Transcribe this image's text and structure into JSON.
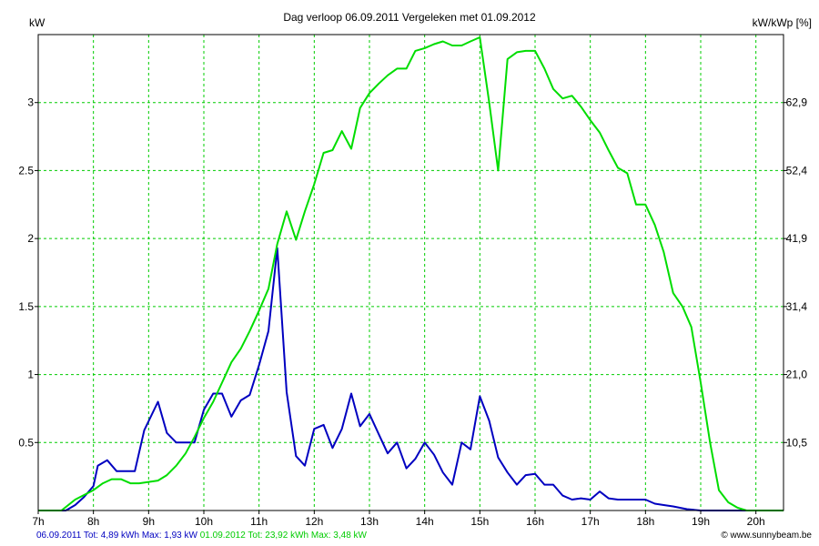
{
  "title": "Dag  verloop 06.09.2011   Vergeleken met 01.09.2012",
  "left_axis_label": "kW",
  "right_axis_label": "kW/kWp [%]",
  "footer": {
    "series1_text": "06.09.2011 Tot: 4,89 kWh Max: 1,93 kW",
    "series2_text": "01.09.2012 Tot: 23,92 kWh Max: 3,48 kW",
    "credit": "© www.sunnybeam.be"
  },
  "colors": {
    "series1": "#0000c0",
    "series2": "#00dd00",
    "grid": "#00cc00",
    "axis": "#000000"
  },
  "chart_data": {
    "type": "line",
    "title": "Dag  verloop 06.09.2011   Vergeleken met 01.09.2012",
    "ylabel": "kW",
    "y2label": "kW/kWp [%]",
    "xlim": [
      7,
      20.5
    ],
    "ylim": [
      0,
      3.5
    ],
    "grid": true,
    "x_ticks": [
      {
        "value": 7,
        "label": "7h"
      },
      {
        "value": 8,
        "label": "8h"
      },
      {
        "value": 9,
        "label": "9h"
      },
      {
        "value": 10,
        "label": "10h"
      },
      {
        "value": 11,
        "label": "11h"
      },
      {
        "value": 12,
        "label": "12h"
      },
      {
        "value": 13,
        "label": "13h"
      },
      {
        "value": 14,
        "label": "14h"
      },
      {
        "value": 15,
        "label": "15h"
      },
      {
        "value": 16,
        "label": "16h"
      },
      {
        "value": 17,
        "label": "17h"
      },
      {
        "value": 18,
        "label": "18h"
      },
      {
        "value": 19,
        "label": "19h"
      },
      {
        "value": 20,
        "label": "20h"
      }
    ],
    "y_ticks": [
      {
        "value": 0.5,
        "label": "0.5"
      },
      {
        "value": 1,
        "label": "1"
      },
      {
        "value": 1.5,
        "label": "1.5"
      },
      {
        "value": 2,
        "label": "2"
      },
      {
        "value": 2.5,
        "label": "2.5"
      },
      {
        "value": 3,
        "label": "3"
      }
    ],
    "y2_ticks": [
      {
        "value": 0.5,
        "label": "10,5"
      },
      {
        "value": 1,
        "label": "21,0"
      },
      {
        "value": 1.5,
        "label": "31,4"
      },
      {
        "value": 2,
        "label": "41,9"
      },
      {
        "value": 2.5,
        "label": "52,4"
      },
      {
        "value": 3,
        "label": "62,9"
      }
    ],
    "series": [
      {
        "name": "06.09.2011",
        "color": "#0000c0",
        "points": [
          [
            7.0,
            0
          ],
          [
            7.5,
            0
          ],
          [
            7.67,
            0.04
          ],
          [
            7.83,
            0.1
          ],
          [
            8.0,
            0.18
          ],
          [
            8.08,
            0.33
          ],
          [
            8.25,
            0.37
          ],
          [
            8.42,
            0.29
          ],
          [
            8.75,
            0.29
          ],
          [
            8.92,
            0.59
          ],
          [
            9.17,
            0.8
          ],
          [
            9.33,
            0.57
          ],
          [
            9.5,
            0.5
          ],
          [
            9.67,
            0.5
          ],
          [
            9.83,
            0.5
          ],
          [
            10.0,
            0.74
          ],
          [
            10.17,
            0.86
          ],
          [
            10.33,
            0.86
          ],
          [
            10.5,
            0.69
          ],
          [
            10.67,
            0.81
          ],
          [
            10.83,
            0.85
          ],
          [
            11.0,
            1.07
          ],
          [
            11.17,
            1.32
          ],
          [
            11.33,
            1.93
          ],
          [
            11.5,
            0.87
          ],
          [
            11.67,
            0.4
          ],
          [
            11.83,
            0.33
          ],
          [
            12.0,
            0.6
          ],
          [
            12.17,
            0.63
          ],
          [
            12.33,
            0.46
          ],
          [
            12.5,
            0.6
          ],
          [
            12.67,
            0.86
          ],
          [
            12.83,
            0.62
          ],
          [
            13.0,
            0.71
          ],
          [
            13.17,
            0.56
          ],
          [
            13.33,
            0.42
          ],
          [
            13.5,
            0.5
          ],
          [
            13.67,
            0.31
          ],
          [
            13.83,
            0.38
          ],
          [
            14.0,
            0.5
          ],
          [
            14.17,
            0.41
          ],
          [
            14.33,
            0.28
          ],
          [
            14.5,
            0.19
          ],
          [
            14.67,
            0.5
          ],
          [
            14.83,
            0.45
          ],
          [
            15.0,
            0.84
          ],
          [
            15.17,
            0.66
          ],
          [
            15.33,
            0.39
          ],
          [
            15.5,
            0.28
          ],
          [
            15.67,
            0.19
          ],
          [
            15.83,
            0.26
          ],
          [
            16.0,
            0.27
          ],
          [
            16.17,
            0.19
          ],
          [
            16.33,
            0.19
          ],
          [
            16.5,
            0.11
          ],
          [
            16.67,
            0.08
          ],
          [
            16.83,
            0.09
          ],
          [
            17.0,
            0.08
          ],
          [
            17.17,
            0.14
          ],
          [
            17.33,
            0.09
          ],
          [
            17.5,
            0.08
          ],
          [
            17.83,
            0.08
          ],
          [
            18.0,
            0.08
          ],
          [
            18.17,
            0.05
          ],
          [
            18.33,
            0.04
          ],
          [
            18.5,
            0.03
          ],
          [
            18.75,
            0.01
          ],
          [
            19.0,
            0
          ],
          [
            20.5,
            0
          ]
        ]
      },
      {
        "name": "01.09.2012",
        "color": "#00dd00",
        "points": [
          [
            7.0,
            0
          ],
          [
            7.42,
            0
          ],
          [
            7.67,
            0.08
          ],
          [
            8.0,
            0.15
          ],
          [
            8.17,
            0.2
          ],
          [
            8.33,
            0.23
          ],
          [
            8.5,
            0.23
          ],
          [
            8.67,
            0.2
          ],
          [
            8.83,
            0.2
          ],
          [
            9.0,
            0.21
          ],
          [
            9.17,
            0.22
          ],
          [
            9.33,
            0.26
          ],
          [
            9.5,
            0.33
          ],
          [
            9.67,
            0.42
          ],
          [
            9.83,
            0.54
          ],
          [
            10.0,
            0.68
          ],
          [
            10.17,
            0.8
          ],
          [
            10.33,
            0.94
          ],
          [
            10.5,
            1.09
          ],
          [
            10.67,
            1.19
          ],
          [
            10.83,
            1.32
          ],
          [
            11.0,
            1.47
          ],
          [
            11.17,
            1.63
          ],
          [
            11.33,
            1.96
          ],
          [
            11.5,
            2.2
          ],
          [
            11.67,
            1.99
          ],
          [
            11.83,
            2.2
          ],
          [
            12.0,
            2.4
          ],
          [
            12.17,
            2.63
          ],
          [
            12.33,
            2.65
          ],
          [
            12.5,
            2.79
          ],
          [
            12.67,
            2.66
          ],
          [
            12.83,
            2.96
          ],
          [
            13.0,
            3.07
          ],
          [
            13.17,
            3.14
          ],
          [
            13.33,
            3.2
          ],
          [
            13.5,
            3.25
          ],
          [
            13.67,
            3.25
          ],
          [
            13.83,
            3.38
          ],
          [
            14.0,
            3.4
          ],
          [
            14.17,
            3.43
          ],
          [
            14.33,
            3.45
          ],
          [
            14.5,
            3.42
          ],
          [
            14.67,
            3.42
          ],
          [
            14.83,
            3.45
          ],
          [
            15.0,
            3.48
          ],
          [
            15.17,
            3.0
          ],
          [
            15.33,
            2.5
          ],
          [
            15.5,
            3.32
          ],
          [
            15.67,
            3.37
          ],
          [
            15.83,
            3.38
          ],
          [
            16.0,
            3.38
          ],
          [
            16.17,
            3.25
          ],
          [
            16.33,
            3.1
          ],
          [
            16.5,
            3.03
          ],
          [
            16.67,
            3.05
          ],
          [
            16.83,
            2.97
          ],
          [
            17.0,
            2.87
          ],
          [
            17.17,
            2.78
          ],
          [
            17.33,
            2.65
          ],
          [
            17.5,
            2.52
          ],
          [
            17.67,
            2.48
          ],
          [
            17.83,
            2.25
          ],
          [
            18.0,
            2.25
          ],
          [
            18.17,
            2.1
          ],
          [
            18.33,
            1.9
          ],
          [
            18.5,
            1.6
          ],
          [
            18.67,
            1.5
          ],
          [
            18.83,
            1.35
          ],
          [
            19.0,
            0.94
          ],
          [
            19.17,
            0.5
          ],
          [
            19.33,
            0.15
          ],
          [
            19.5,
            0.06
          ],
          [
            19.67,
            0.02
          ],
          [
            19.83,
            0
          ],
          [
            20.5,
            0
          ]
        ]
      }
    ]
  }
}
